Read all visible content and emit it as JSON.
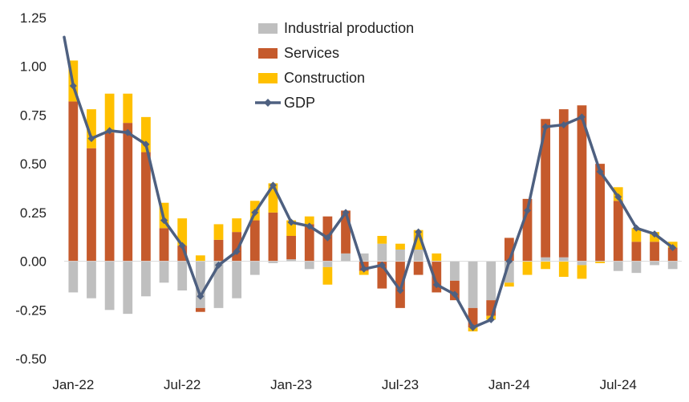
{
  "chart_data": {
    "type": "bar",
    "stacked": true,
    "title": "",
    "xlabel": "",
    "ylabel": "",
    "ylim": [
      -0.5,
      1.25
    ],
    "yticks": [
      -0.5,
      -0.25,
      0.0,
      0.25,
      0.5,
      0.75,
      1.0,
      1.25
    ],
    "ytick_labels": [
      "-0.50",
      "-0.25",
      "0.00",
      "0.25",
      "0.50",
      "0.75",
      "1.00",
      "1.25"
    ],
    "categories": [
      "Jan-22",
      "Feb-22",
      "Mar-22",
      "Apr-22",
      "May-22",
      "Jun-22",
      "Jul-22",
      "Aug-22",
      "Sep-22",
      "Oct-22",
      "Nov-22",
      "Dec-22",
      "Jan-23",
      "Feb-23",
      "Mar-23",
      "Apr-23",
      "May-23",
      "Jun-23",
      "Jul-23",
      "Aug-23",
      "Sep-23",
      "Oct-23",
      "Nov-23",
      "Dec-23",
      "Jan-24",
      "Feb-24",
      "Mar-24",
      "Apr-24",
      "May-24",
      "Jun-24",
      "Jul-24",
      "Aug-24",
      "Sep-24",
      "Oct-24"
    ],
    "xtick_labels": [
      "Jan-22",
      "Jul-22",
      "Jan-23",
      "Jul-23",
      "Jan-24",
      "Jul-24"
    ],
    "legend_position": "top-center",
    "grid": false,
    "series": [
      {
        "name": "Industrial production",
        "kind": "bar",
        "color": "#BFBFBF",
        "values": [
          -0.16,
          -0.19,
          -0.25,
          -0.27,
          -0.18,
          -0.11,
          -0.15,
          -0.24,
          -0.24,
          -0.19,
          -0.07,
          -0.01,
          0.01,
          -0.04,
          -0.03,
          0.04,
          0.04,
          0.09,
          0.06,
          0.06,
          0.0,
          -0.1,
          -0.24,
          -0.2,
          -0.11,
          0.0,
          0.02,
          0.02,
          -0.02,
          0.0,
          -0.05,
          -0.06,
          -0.02,
          -0.04
        ]
      },
      {
        "name": "Services",
        "kind": "bar",
        "color": "#C55A2C",
        "values": [
          0.82,
          0.58,
          0.66,
          0.71,
          0.56,
          0.17,
          0.08,
          -0.02,
          0.11,
          0.15,
          0.21,
          0.25,
          0.12,
          0.19,
          0.23,
          0.22,
          -0.05,
          -0.14,
          -0.24,
          -0.07,
          -0.16,
          -0.1,
          -0.1,
          -0.08,
          0.12,
          0.32,
          0.71,
          0.76,
          0.8,
          0.5,
          0.31,
          0.1,
          0.1,
          0.07
        ]
      },
      {
        "name": "Construction",
        "kind": "bar",
        "color": "#FFC000",
        "values": [
          0.21,
          0.2,
          0.2,
          0.15,
          0.18,
          0.13,
          0.14,
          0.03,
          0.08,
          0.07,
          0.1,
          0.15,
          0.08,
          0.04,
          -0.09,
          0.0,
          -0.02,
          0.04,
          0.03,
          0.1,
          0.04,
          0.0,
          -0.02,
          -0.02,
          -0.02,
          -0.07,
          -0.04,
          -0.08,
          -0.07,
          -0.01,
          0.07,
          0.07,
          0.05,
          0.03
        ]
      },
      {
        "name": "GDP",
        "kind": "line",
        "color": "#4E6080",
        "values": [
          0.9,
          0.63,
          0.67,
          0.66,
          0.6,
          0.21,
          0.08,
          -0.18,
          -0.02,
          0.05,
          0.25,
          0.39,
          0.2,
          0.18,
          0.12,
          0.25,
          -0.04,
          -0.02,
          -0.15,
          0.15,
          -0.12,
          -0.17,
          -0.34,
          -0.3,
          0.0,
          0.26,
          0.69,
          0.7,
          0.74,
          0.46,
          0.33,
          0.17,
          0.14,
          0.07
        ]
      }
    ],
    "gdp_start_value": 1.15
  }
}
